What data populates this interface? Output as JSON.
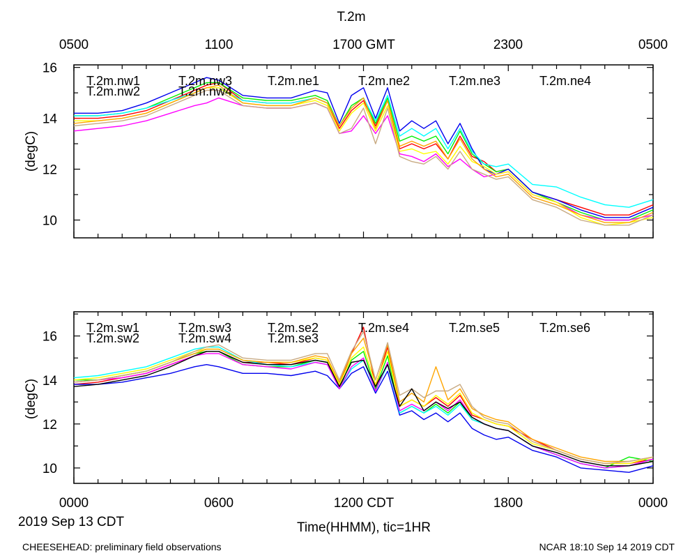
{
  "figure": {
    "title": "T.2m",
    "top_axis_ticks": [
      "0500",
      "1100",
      "1700 GMT",
      "2300",
      "0500"
    ],
    "bottom_axis_ticks": [
      "0000",
      "0600",
      "1200 CDT",
      "1800",
      "0000"
    ],
    "date_label": "2019 Sep 13 CDT",
    "xlabel": "Time(HHMM), tic=1HR",
    "footer_left": "CHEESEHEAD: preliminary field observations",
    "footer_right": "NCAR 18:10 Sep 14 2019 CDT"
  },
  "chart_data": [
    {
      "type": "line",
      "title": "T.2m",
      "xlabel": "Time(HHMM), tic=1HR",
      "ylabel": "(degC)",
      "xlim": [
        0,
        24
      ],
      "ylim": [
        9.3,
        16.1
      ],
      "yticks": [
        10,
        12,
        14,
        16
      ],
      "ytick_labels": [
        "10",
        "12",
        "14",
        "16"
      ],
      "x": [
        0,
        1,
        2,
        3,
        4,
        5,
        5.5,
        6,
        7,
        8,
        9,
        10,
        10.5,
        11,
        11.5,
        12,
        12.5,
        13,
        13.5,
        14,
        14.5,
        15,
        15.5,
        16,
        16.5,
        17,
        17.5,
        18,
        19,
        20,
        21,
        22,
        23,
        24
      ],
      "series": [
        {
          "name": "T.2m.nw1",
          "color": "#ff0000",
          "values": [
            14.0,
            14.0,
            14.1,
            14.3,
            14.7,
            15.1,
            15.3,
            15.4,
            14.7,
            14.6,
            14.6,
            14.8,
            14.6,
            13.6,
            14.3,
            14.7,
            13.7,
            14.7,
            12.8,
            13.0,
            12.8,
            13.0,
            12.4,
            13.3,
            12.5,
            12.3,
            11.9,
            12.0,
            11.1,
            10.8,
            10.5,
            10.2,
            10.2,
            10.6
          ]
        },
        {
          "name": "T.2m.nw2",
          "color": "#00ee00",
          "values": [
            14.1,
            14.1,
            14.2,
            14.4,
            14.8,
            15.2,
            15.4,
            15.4,
            14.8,
            14.7,
            14.7,
            14.9,
            14.7,
            13.7,
            14.5,
            14.8,
            13.8,
            14.8,
            13.1,
            13.3,
            13.1,
            13.3,
            12.6,
            13.5,
            12.6,
            12.2,
            11.9,
            12.0,
            11.1,
            10.7,
            10.3,
            10.0,
            10.0,
            10.4
          ]
        },
        {
          "name": "T.2m.nw3",
          "color": "#0000ee",
          "values": [
            14.2,
            14.2,
            14.3,
            14.6,
            15.0,
            15.4,
            15.6,
            15.5,
            14.9,
            14.8,
            14.8,
            15.1,
            15.0,
            13.8,
            14.9,
            15.2,
            14.0,
            15.2,
            13.5,
            13.9,
            13.6,
            13.9,
            13.0,
            13.8,
            12.8,
            12.0,
            11.8,
            12.0,
            11.1,
            10.8,
            10.4,
            10.1,
            10.1,
            10.5
          ]
        },
        {
          "name": "T.2m.nw4",
          "color": "#00ffff",
          "values": [
            14.1,
            14.1,
            14.2,
            14.4,
            14.7,
            15.0,
            15.2,
            15.2,
            14.7,
            14.6,
            14.6,
            14.8,
            14.6,
            13.7,
            14.4,
            14.8,
            13.9,
            14.9,
            13.3,
            13.6,
            13.3,
            13.6,
            12.8,
            13.6,
            12.7,
            12.2,
            12.1,
            12.2,
            11.4,
            11.3,
            10.9,
            10.6,
            10.5,
            10.8
          ]
        },
        {
          "name": "T.2m.ne1",
          "color": "#ff00ff",
          "values": [
            13.5,
            13.6,
            13.7,
            13.9,
            14.2,
            14.5,
            14.6,
            14.8,
            14.5,
            14.4,
            14.4,
            14.6,
            14.4,
            13.4,
            13.5,
            14.1,
            13.4,
            14.1,
            12.6,
            12.5,
            12.3,
            12.6,
            12.1,
            12.4,
            12.0,
            11.7,
            11.8,
            11.9,
            11.0,
            10.7,
            10.2,
            10.0,
            10.0,
            10.2
          ]
        },
        {
          "name": "T.2m.ne2",
          "color": "#ffff00",
          "values": [
            13.9,
            13.9,
            14.0,
            14.2,
            14.6,
            15.0,
            15.2,
            15.2,
            14.6,
            14.5,
            14.5,
            14.7,
            14.5,
            13.5,
            14.2,
            14.6,
            13.5,
            14.5,
            12.7,
            12.8,
            12.6,
            12.7,
            12.2,
            12.9,
            12.3,
            12.1,
            11.8,
            11.9,
            11.0,
            10.7,
            10.1,
            9.8,
            9.9,
            10.1
          ]
        },
        {
          "name": "T.2m.ne3",
          "color": "#ffa500",
          "values": [
            13.8,
            13.9,
            14.0,
            14.2,
            14.6,
            15.0,
            15.2,
            15.3,
            14.6,
            14.5,
            14.5,
            14.8,
            14.6,
            13.7,
            14.4,
            14.8,
            13.6,
            14.7,
            12.9,
            13.1,
            12.9,
            13.1,
            12.4,
            13.2,
            12.4,
            12.0,
            11.7,
            11.8,
            10.9,
            10.6,
            10.2,
            9.9,
            9.9,
            10.3
          ]
        },
        {
          "name": "T.2m.ne4",
          "color": "#c8aa82",
          "values": [
            13.7,
            13.8,
            13.9,
            14.1,
            14.5,
            14.9,
            15.1,
            15.1,
            14.5,
            14.4,
            14.4,
            14.6,
            14.4,
            13.4,
            13.6,
            14.4,
            13.0,
            14.4,
            12.5,
            12.3,
            12.2,
            12.5,
            12.0,
            12.7,
            12.0,
            11.8,
            11.6,
            11.7,
            10.8,
            10.5,
            10.0,
            9.8,
            9.8,
            10.2
          ]
        }
      ]
    },
    {
      "type": "line",
      "title": "",
      "xlabel": "Time(HHMM), tic=1HR",
      "ylabel": "(degC)",
      "xlim": [
        0,
        24
      ],
      "ylim": [
        9.3,
        17.1
      ],
      "yticks": [
        10,
        12,
        14,
        16
      ],
      "ytick_labels": [
        "10",
        "12",
        "14",
        "16"
      ],
      "x": [
        0,
        1,
        2,
        3,
        4,
        5,
        5.5,
        6,
        7,
        8,
        9,
        10,
        10.5,
        11,
        11.5,
        12,
        12.5,
        13,
        13.5,
        14,
        14.5,
        15,
        15.5,
        16,
        16.5,
        17,
        17.5,
        18,
        19,
        20,
        21,
        22,
        23,
        24
      ],
      "series": [
        {
          "name": "T.2m.sw1",
          "color": "#ff0000",
          "values": [
            13.8,
            13.9,
            14.1,
            14.3,
            14.7,
            15.1,
            15.3,
            15.3,
            14.8,
            14.8,
            14.7,
            15.0,
            14.9,
            13.8,
            15.2,
            16.4,
            13.7,
            15.5,
            12.8,
            13.1,
            12.8,
            13.2,
            12.8,
            13.3,
            12.4,
            12.2,
            12.0,
            11.9,
            11.3,
            10.8,
            10.4,
            10.2,
            10.2,
            10.4
          ]
        },
        {
          "name": "T.2m.sw2",
          "color": "#00ee00",
          "values": [
            14.0,
            14.0,
            14.2,
            14.4,
            14.8,
            15.2,
            15.3,
            15.3,
            14.7,
            14.6,
            14.6,
            14.9,
            14.8,
            13.6,
            14.9,
            15.3,
            13.6,
            15.1,
            12.5,
            12.8,
            12.5,
            12.9,
            12.5,
            13.0,
            12.2,
            12.0,
            11.8,
            11.7,
            11.0,
            10.6,
            10.2,
            10.0,
            10.5,
            10.3
          ]
        },
        {
          "name": "T.2m.sw3",
          "color": "#0000ee",
          "values": [
            13.8,
            13.8,
            13.9,
            14.1,
            14.3,
            14.6,
            14.7,
            14.6,
            14.3,
            14.3,
            14.2,
            14.4,
            14.2,
            13.6,
            14.3,
            14.6,
            13.4,
            14.4,
            12.4,
            12.6,
            12.2,
            12.5,
            12.1,
            12.5,
            11.8,
            11.5,
            11.3,
            11.4,
            10.8,
            10.5,
            10.0,
            9.9,
            9.8,
            10.1
          ]
        },
        {
          "name": "T.2m.sw4",
          "color": "#00ffff",
          "values": [
            14.1,
            14.2,
            14.4,
            14.6,
            15.0,
            15.4,
            15.5,
            15.5,
            14.9,
            14.7,
            14.6,
            14.8,
            14.7,
            13.6,
            14.5,
            14.9,
            13.5,
            14.7,
            12.5,
            12.8,
            12.5,
            12.8,
            12.4,
            12.9,
            12.2,
            12.0,
            11.8,
            11.7,
            11.0,
            10.6,
            10.2,
            10.0,
            10.1,
            10.4
          ]
        },
        {
          "name": "T.2m.se2",
          "color": "#ff00ff",
          "values": [
            13.9,
            14.0,
            14.1,
            14.3,
            14.7,
            15.1,
            15.2,
            15.2,
            14.7,
            14.6,
            14.5,
            14.8,
            14.7,
            13.6,
            14.6,
            15.0,
            13.5,
            14.8,
            12.6,
            12.9,
            12.6,
            13.0,
            12.6,
            13.1,
            12.3,
            12.0,
            11.8,
            11.7,
            11.0,
            10.6,
            10.2,
            10.0,
            10.1,
            10.4
          ]
        },
        {
          "name": "T.2m.se3",
          "color": "#ffff00",
          "values": [
            14.0,
            14.1,
            14.3,
            14.5,
            14.9,
            15.3,
            15.4,
            15.4,
            14.9,
            14.8,
            14.8,
            15.0,
            14.9,
            13.8,
            15.0,
            15.5,
            13.8,
            15.3,
            12.8,
            13.1,
            12.8,
            13.3,
            12.9,
            13.4,
            12.5,
            12.2,
            12.0,
            11.9,
            11.1,
            10.8,
            10.4,
            10.2,
            10.2,
            10.5
          ]
        },
        {
          "name": "T.2m.se4",
          "color": "#ffa500",
          "values": [
            13.9,
            14.0,
            14.2,
            14.4,
            14.8,
            15.2,
            15.4,
            15.4,
            14.9,
            14.8,
            14.8,
            15.1,
            15.0,
            13.9,
            15.2,
            15.9,
            14.0,
            15.6,
            13.0,
            13.4,
            13.0,
            14.6,
            13.1,
            13.6,
            12.7,
            12.4,
            12.2,
            12.1,
            11.3,
            10.9,
            10.5,
            10.3,
            10.3,
            10.5
          ]
        },
        {
          "name": "T.2m.se5",
          "color": "#c8aa82",
          "values": [
            13.9,
            14.0,
            14.2,
            14.4,
            14.8,
            15.3,
            15.5,
            15.6,
            15.0,
            14.9,
            14.9,
            15.2,
            15.2,
            14.0,
            15.3,
            16.2,
            14.0,
            15.7,
            13.3,
            13.6,
            13.2,
            13.5,
            13.5,
            13.8,
            12.8,
            12.3,
            12.1,
            12.0,
            11.2,
            10.8,
            10.4,
            10.2,
            10.3,
            10.5
          ]
        },
        {
          "name": "T.2m.se6",
          "color": "#000000",
          "values": [
            13.7,
            13.8,
            14.0,
            14.2,
            14.6,
            15.1,
            15.3,
            15.3,
            14.8,
            14.7,
            14.7,
            14.9,
            14.8,
            13.7,
            14.8,
            14.9,
            13.7,
            14.7,
            12.8,
            13.6,
            12.6,
            13.0,
            12.7,
            13.0,
            12.3,
            12.0,
            11.8,
            11.7,
            11.0,
            10.7,
            10.3,
            10.1,
            10.1,
            10.3
          ]
        }
      ]
    }
  ]
}
